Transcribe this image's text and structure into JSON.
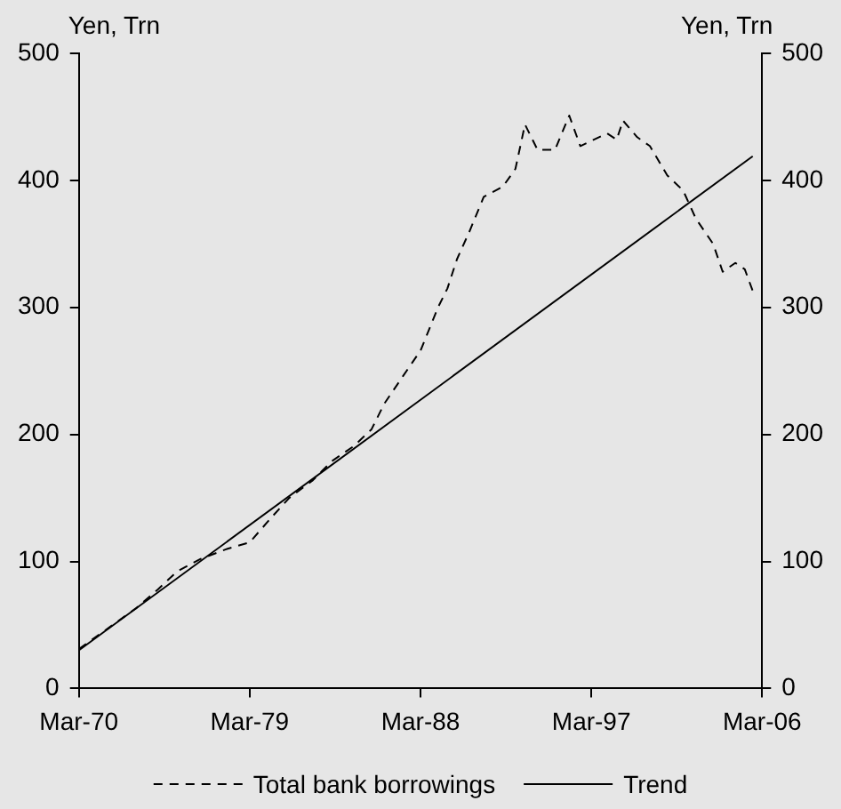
{
  "chart_data": {
    "type": "line",
    "ylabel": "Yen, Trn",
    "y2label": "Yen, Trn",
    "xlim": [
      "1970-03",
      "2006-03"
    ],
    "xticks": [
      {
        "value": "1970-03",
        "label": "Mar-70"
      },
      {
        "value": "1979-03",
        "label": "Mar-79"
      },
      {
        "value": "1988-03",
        "label": "Mar-88"
      },
      {
        "value": "1997-03",
        "label": "Mar-97"
      },
      {
        "value": "2006-03",
        "label": "Mar-06"
      }
    ],
    "ylim": [
      0,
      500
    ],
    "yticks": [
      0,
      100,
      200,
      300,
      400,
      500
    ],
    "y2lim": [
      0,
      500
    ],
    "y2ticks": [
      0,
      100,
      200,
      300,
      400,
      500
    ],
    "grid": false,
    "legend": "bottom",
    "marker": "none",
    "series": [
      {
        "name": "Total bank borrowings",
        "color": "#000000",
        "line_style": "dashed",
        "x": [
          "1970-03",
          "1973-03",
          "1974-05",
          "1975-05",
          "1976-08",
          "1978-01",
          "1979-03",
          "1980-05",
          "1981-04",
          "1982-07",
          "1983-07",
          "1984-09",
          "1985-08",
          "1986-04",
          "1987-04",
          "1988-03",
          "1989-02",
          "1989-08",
          "1990-02",
          "1990-10",
          "1991-07",
          "1992-07",
          "1993-03",
          "1993-09",
          "1994-05",
          "1995-04",
          "1996-01",
          "1996-08",
          "1998-01",
          "1998-07",
          "1998-11",
          "1999-08",
          "2000-04",
          "2001-03",
          "2002-01",
          "2002-09",
          "2003-08",
          "2004-02",
          "2004-10",
          "2005-04",
          "2005-09"
        ],
        "values": [
          31,
          63,
          78,
          92,
          102,
          110,
          115,
          135,
          150,
          164,
          179,
          191,
          204,
          224,
          246,
          266,
          300,
          315,
          338,
          360,
          387,
          395,
          409,
          444,
          424,
          424,
          451,
          427,
          437,
          432,
          447,
          434,
          427,
          404,
          392,
          370,
          350,
          328,
          335,
          330,
          313
        ]
      },
      {
        "name": "Trend",
        "color": "#000000",
        "line_style": "solid",
        "x": [
          "1970-03",
          "2005-09"
        ],
        "values": [
          30,
          419
        ]
      }
    ]
  }
}
